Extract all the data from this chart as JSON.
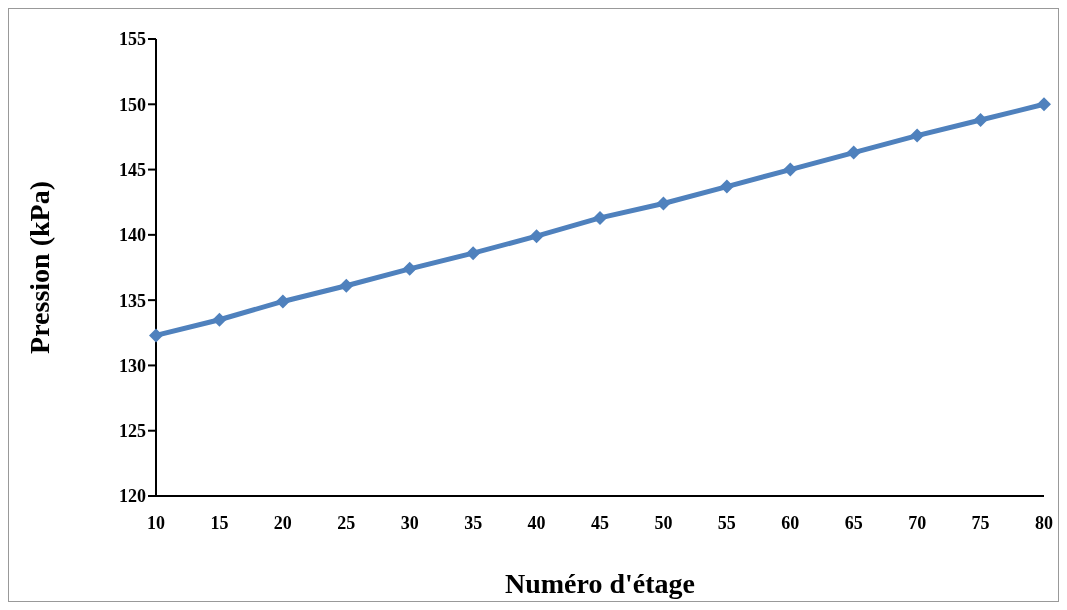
{
  "chart_data": {
    "type": "line",
    "xlabel": "Numéro d'étage",
    "ylabel": "Pression (kPa)",
    "categories": [
      "10",
      "15",
      "20",
      "25",
      "30",
      "35",
      "40",
      "45",
      "50",
      "55",
      "60",
      "65",
      "70",
      "75",
      "80"
    ],
    "series": [
      {
        "color": "#4f81bd",
        "values": [
          132.3,
          133.5,
          134.9,
          136.1,
          137.4,
          138.6,
          139.9,
          141.3,
          142.4,
          143.7,
          145.0,
          146.3,
          147.6,
          148.8,
          150.0
        ]
      }
    ],
    "ylim": [
      120,
      155
    ],
    "yticks": [
      120,
      125,
      130,
      135,
      140,
      145,
      150,
      155
    ],
    "grid": false,
    "legend": false,
    "marker": "diamond",
    "line_style": "solid"
  }
}
